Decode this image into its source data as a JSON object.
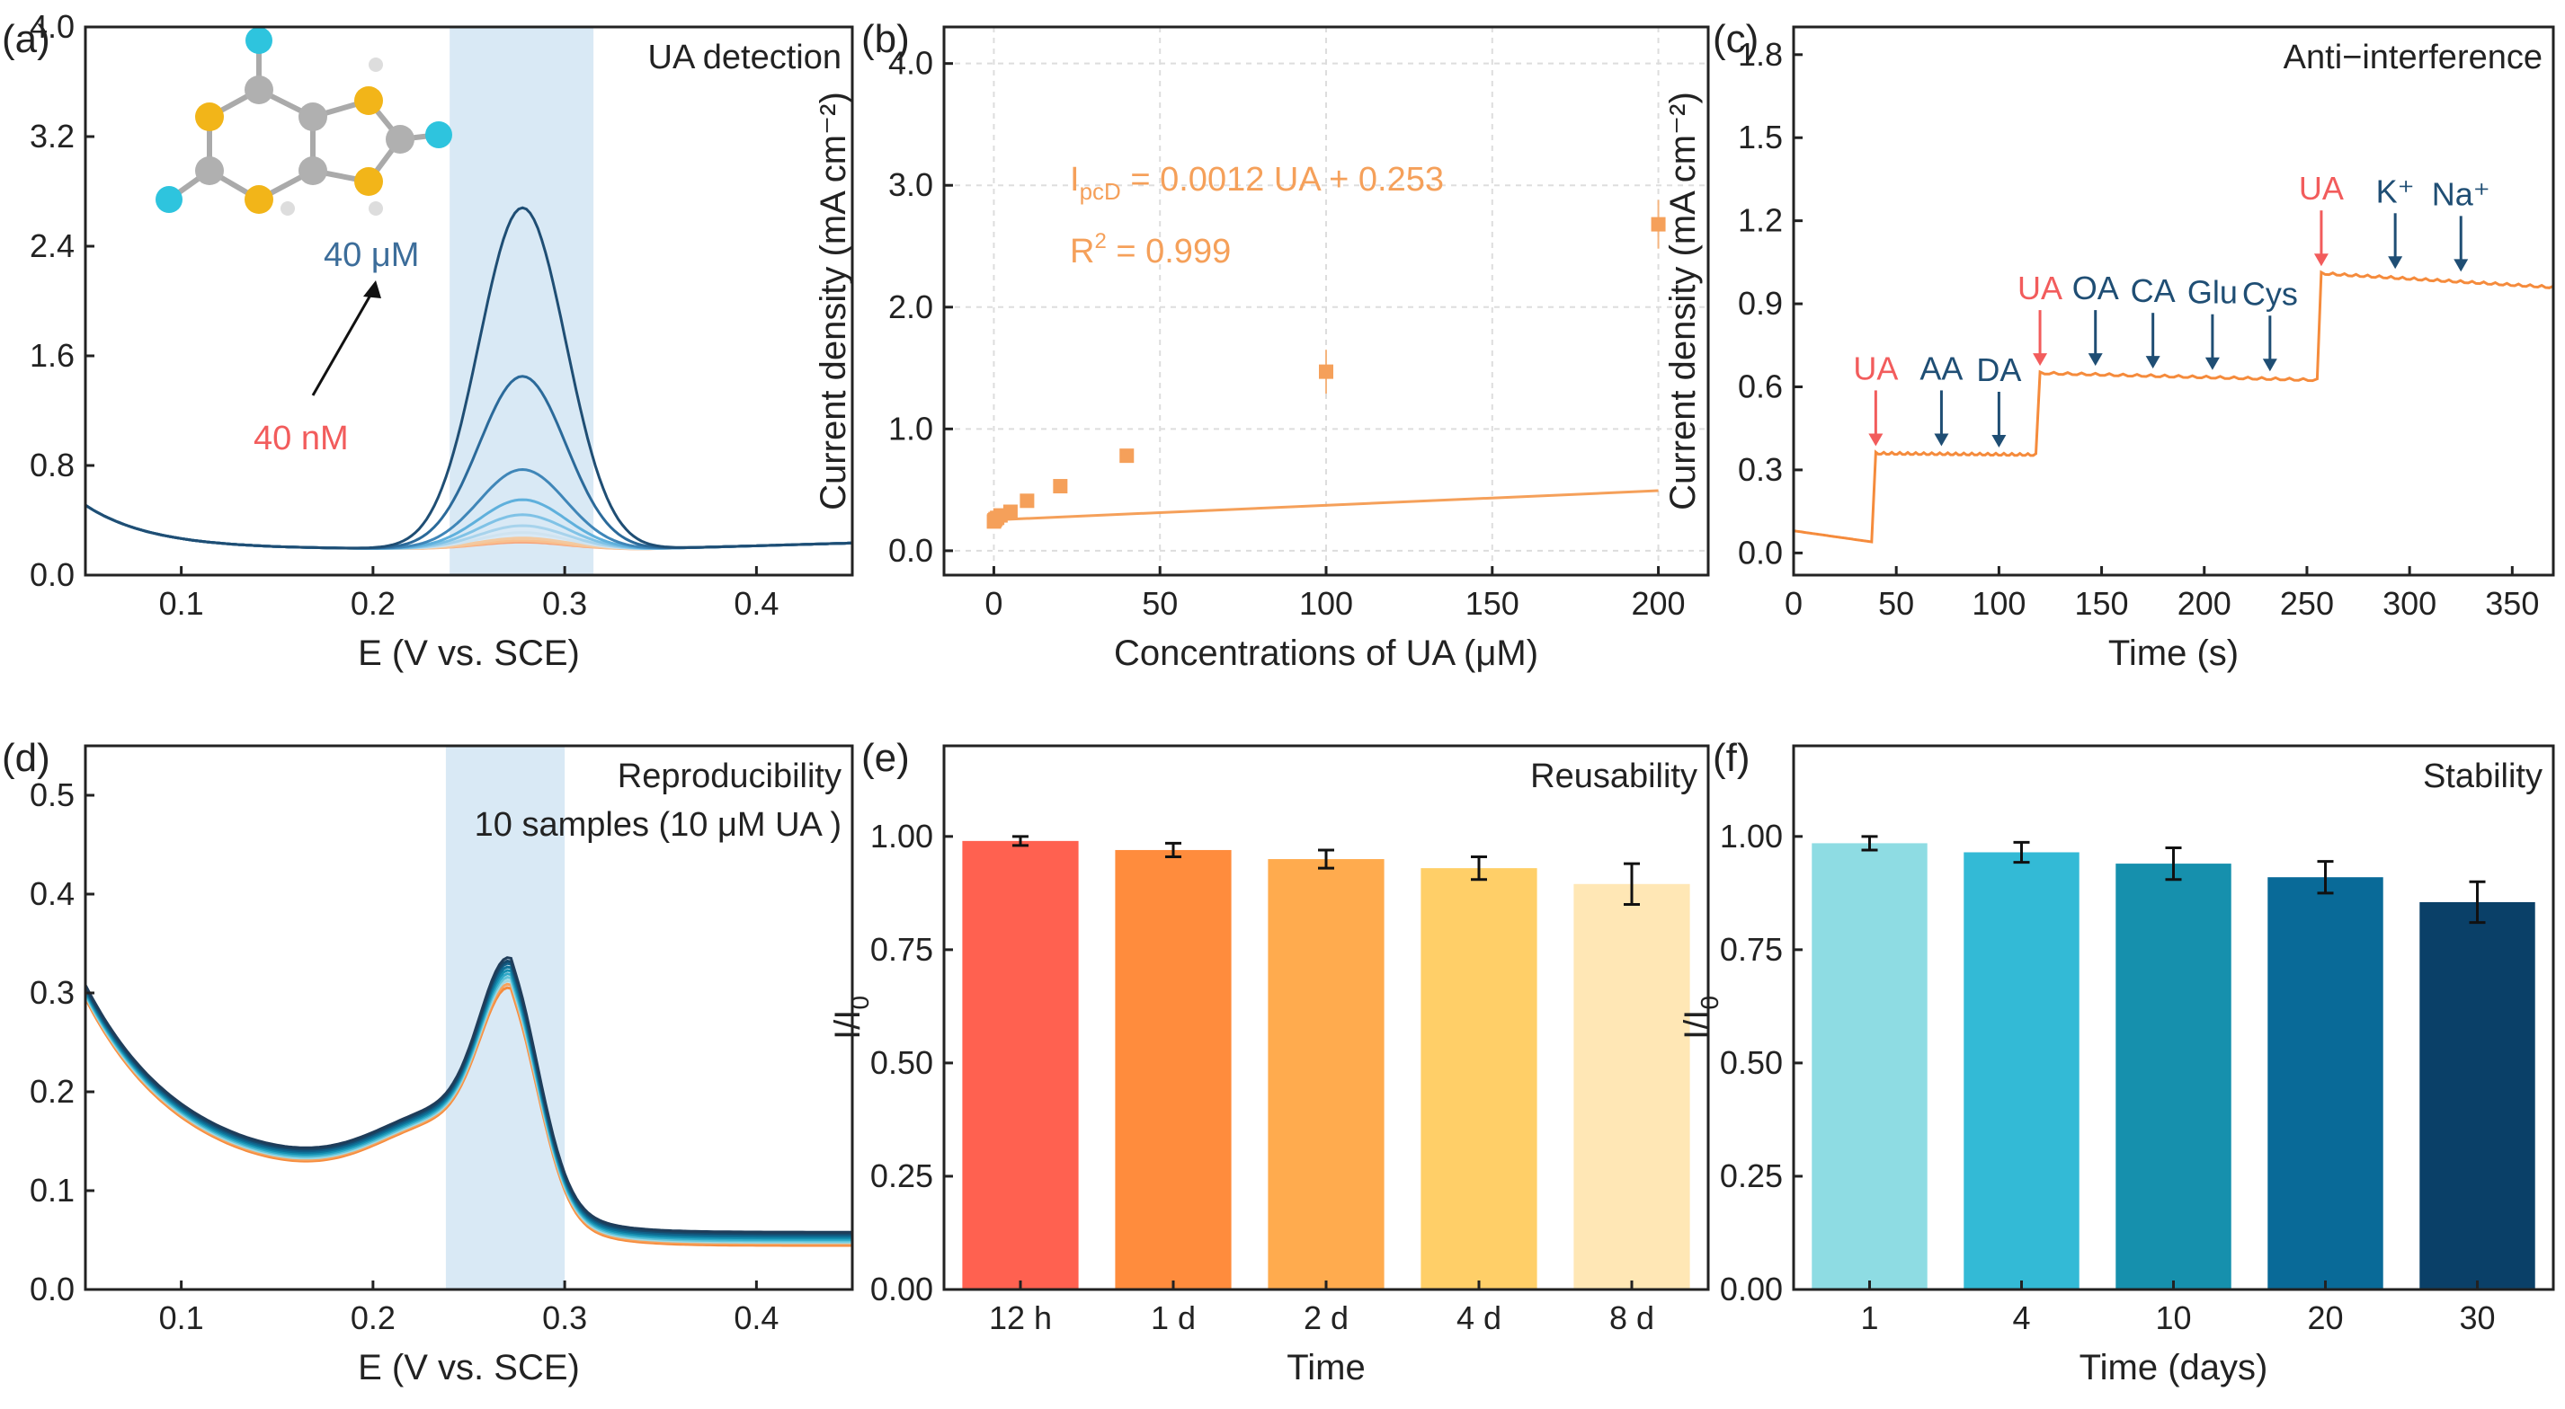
{
  "chart_data": [
    {
      "panel": "(a)",
      "type": "line",
      "title": "UA detection",
      "xlabel": "E (V vs. SCE)",
      "ylabel": "Current density (mA cm⁻²)",
      "xlim": [
        0.05,
        0.45
      ],
      "ylim": [
        0,
        4.0
      ],
      "xticks": [
        "0.1",
        "0.2",
        "0.3",
        "0.4"
      ],
      "xtick_values": [
        0.1,
        0.2,
        0.3,
        0.4
      ],
      "yticks": [
        "0.0",
        "0.8",
        "1.6",
        "2.4",
        "3.2",
        "4.0"
      ],
      "ytick_values": [
        0,
        0.8,
        1.6,
        2.4,
        3.2,
        4.0
      ],
      "highlight_range": [
        0.24,
        0.315
      ],
      "peak_E": 0.278,
      "peak_heights": [
        0.24,
        0.25,
        0.27,
        0.31,
        0.36,
        0.44,
        0.55,
        0.77,
        1.45,
        2.68
      ],
      "annotations": {
        "high": "40 μM",
        "low": "40 nM"
      },
      "colors": [
        "#f7a37a",
        "#f9c08f",
        "#f3c9a0",
        "#cfe3f0",
        "#a7d3ec",
        "#7fc2e6",
        "#5fb0dc",
        "#3f86b8",
        "#2b6a9a",
        "#1f4e74"
      ]
    },
    {
      "panel": "(b)",
      "type": "scatter",
      "xlabel": "Concentrations of UA (μM)",
      "ylabel": "Current density (mA cm⁻²)",
      "xlim": [
        -15,
        215
      ],
      "ylim": [
        -0.2,
        4.3
      ],
      "xticks": [
        "0",
        "50",
        "100",
        "150",
        "200"
      ],
      "xtick_values": [
        0,
        50,
        100,
        150,
        200
      ],
      "yticks": [
        "0.0",
        "1.0",
        "2.0",
        "3.0",
        "4.0"
      ],
      "ytick_values": [
        0,
        1,
        2,
        3,
        4
      ],
      "x": [
        0.04,
        0.2,
        0.5,
        1,
        2,
        5,
        10,
        20,
        40,
        100,
        200
      ],
      "y": [
        0.24,
        0.25,
        0.26,
        0.27,
        0.29,
        0.32,
        0.41,
        0.53,
        0.78,
        1.47,
        2.68
      ],
      "errors": [
        0.02,
        0.02,
        0.02,
        0.02,
        0.02,
        0.02,
        0.03,
        0.03,
        0.05,
        0.18,
        0.2
      ],
      "fit": {
        "slope": 0.0012,
        "intercept": 0.253
      },
      "eq_prefix": "I",
      "eq_sub": "pcD",
      "eq_rest": " = 0.0012 UA + 0.253",
      "r2_prefix": "R",
      "r2_sup": "2",
      "r2_rest": " = 0.999",
      "color": "#f5a05a"
    },
    {
      "panel": "(c)",
      "type": "line",
      "title": "Anti−interference",
      "xlabel": "Time (s)",
      "ylabel": "Current density (mA cm⁻²)",
      "xlim": [
        0,
        370
      ],
      "ylim": [
        -0.08,
        1.9
      ],
      "xticks": [
        "0",
        "50",
        "100",
        "150",
        "200",
        "250",
        "300",
        "350"
      ],
      "xtick_values": [
        0,
        50,
        100,
        150,
        200,
        250,
        300,
        350
      ],
      "yticks": [
        "0.0",
        "0.3",
        "0.6",
        "0.9",
        "1.2",
        "1.5",
        "1.8"
      ],
      "ytick_values": [
        0,
        0.3,
        0.6,
        0.9,
        1.2,
        1.5,
        1.8
      ],
      "trace_x": [
        0,
        38,
        40,
        118,
        120,
        255,
        257,
        370
      ],
      "trace_y": [
        0.08,
        0.04,
        0.36,
        0.355,
        0.65,
        0.625,
        1.01,
        0.96
      ],
      "events": [
        {
          "label": "UA",
          "t": 40,
          "level": 0.36,
          "color": "#f25c5c"
        },
        {
          "label": "AA",
          "t": 72,
          "level": 0.36,
          "color": "#1f4e74"
        },
        {
          "label": "DA",
          "t": 100,
          "level": 0.355,
          "color": "#1f4e74"
        },
        {
          "label": "UA",
          "t": 120,
          "level": 0.65,
          "color": "#f25c5c"
        },
        {
          "label": "OA",
          "t": 147,
          "level": 0.65,
          "color": "#1f4e74"
        },
        {
          "label": "CA",
          "t": 175,
          "level": 0.64,
          "color": "#1f4e74"
        },
        {
          "label": "Glu",
          "t": 204,
          "level": 0.635,
          "color": "#1f4e74"
        },
        {
          "label": "Cys",
          "t": 232,
          "level": 0.63,
          "color": "#1f4e74"
        },
        {
          "label": "UA",
          "t": 257,
          "level": 1.01,
          "color": "#f25c5c"
        },
        {
          "label": "K⁺",
          "t": 293,
          "level": 1.0,
          "color": "#1f4e74"
        },
        {
          "label": "Na⁺",
          "t": 325,
          "level": 0.99,
          "color": "#1f4e74"
        }
      ],
      "color": "#f58b3c"
    },
    {
      "panel": "(d)",
      "type": "line",
      "title": "Reproducibility",
      "subtitle": "10 samples (10 μM UA )",
      "xlabel": "E (V vs. SCE)",
      "ylabel": "Current density (mA cm⁻²)",
      "xlim": [
        0.05,
        0.45
      ],
      "ylim": [
        0,
        0.55
      ],
      "xticks": [
        "0.1",
        "0.2",
        "0.3",
        "0.4"
      ],
      "xtick_values": [
        0.1,
        0.2,
        0.3,
        0.4
      ],
      "yticks": [
        "0.0",
        "0.1",
        "0.2",
        "0.3",
        "0.4",
        "0.5"
      ],
      "ytick_values": [
        0,
        0.1,
        0.2,
        0.3,
        0.4,
        0.5
      ],
      "highlight_range": [
        0.238,
        0.3
      ],
      "peak_E": 0.272,
      "peak_heights": [
        0.318,
        0.32,
        0.322,
        0.324,
        0.326,
        0.328,
        0.33,
        0.332,
        0.333,
        0.335
      ],
      "colors": [
        "#f58b3c",
        "#f7a25c",
        "#9ed8e3",
        "#5fc3d8",
        "#2fa9c8",
        "#168fb0",
        "#0f7399",
        "#115e86",
        "#16496b",
        "#1f3d5a"
      ]
    },
    {
      "panel": "(e)",
      "type": "bar",
      "title": "Reusability",
      "xlabel": "Time",
      "ylabel_main": "I/I",
      "ylabel_sub": "0",
      "ylim": [
        0,
        1.2
      ],
      "yticks": [
        "0.00",
        "0.25",
        "0.50",
        "0.75",
        "1.00"
      ],
      "ytick_values": [
        0,
        0.25,
        0.5,
        0.75,
        1.0
      ],
      "categories": [
        "12 h",
        "1 d",
        "2 d",
        "4 d",
        "8 d"
      ],
      "values": [
        0.99,
        0.97,
        0.95,
        0.93,
        0.895
      ],
      "errors": [
        0.01,
        0.015,
        0.02,
        0.025,
        0.045
      ],
      "colors": [
        "#ff6150",
        "#ff8c3d",
        "#ffab4e",
        "#ffcf68",
        "#ffe7b5"
      ]
    },
    {
      "panel": "(f)",
      "type": "bar",
      "title": "Stability",
      "xlabel": "Time (days)",
      "ylabel_main": "I/I",
      "ylabel_sub": "0",
      "ylim": [
        0,
        1.2
      ],
      "yticks": [
        "0.00",
        "0.25",
        "0.50",
        "0.75",
        "1.00"
      ],
      "ytick_values": [
        0,
        0.25,
        0.5,
        0.75,
        1.0
      ],
      "categories": [
        "1",
        "4",
        "10",
        "20",
        "30"
      ],
      "values": [
        0.985,
        0.965,
        0.94,
        0.91,
        0.855
      ],
      "errors": [
        0.015,
        0.022,
        0.035,
        0.035,
        0.045
      ],
      "colors": [
        "#8edce3",
        "#33bad6",
        "#1690ad",
        "#096a98",
        "#0a4068"
      ]
    }
  ]
}
